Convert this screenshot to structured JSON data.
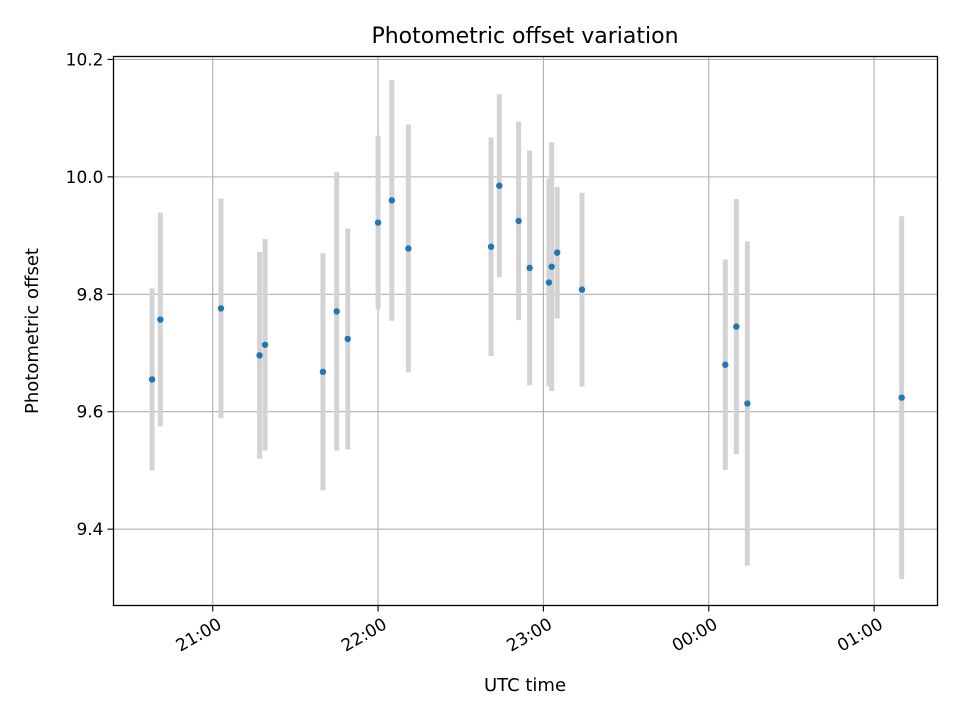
{
  "chart_data": {
    "type": "scatter",
    "title": "Photometric offset variation",
    "xlabel": "UTC time",
    "ylabel": "Photometric offset",
    "x_ticks": [
      "21:00",
      "22:00",
      "23:00",
      "00:00",
      "01:00"
    ],
    "y_ticks": [
      "9.4",
      "9.6",
      "9.8",
      "10.0",
      "10.2"
    ],
    "xlim": [
      "20:24",
      "01:23"
    ],
    "ylim": [
      9.27,
      10.205
    ],
    "grid": true,
    "marker_color": "#1f77b4",
    "errorbar_color": "#d3d3d3",
    "points": [
      {
        "t": "20:38",
        "y": 9.655,
        "err": 0.155
      },
      {
        "t": "20:41",
        "y": 9.757,
        "err": 0.182
      },
      {
        "t": "21:03",
        "y": 9.776,
        "err": 0.187
      },
      {
        "t": "21:17",
        "y": 9.696,
        "err": 0.176
      },
      {
        "t": "21:19",
        "y": 9.714,
        "err": 0.18
      },
      {
        "t": "21:40",
        "y": 9.668,
        "err": 0.202
      },
      {
        "t": "21:45",
        "y": 9.771,
        "err": 0.237
      },
      {
        "t": "21:49",
        "y": 9.724,
        "err": 0.188
      },
      {
        "t": "22:00",
        "y": 9.922,
        "err": 0.148
      },
      {
        "t": "22:05",
        "y": 9.96,
        "err": 0.205
      },
      {
        "t": "22:11",
        "y": 9.878,
        "err": 0.211
      },
      {
        "t": "22:41",
        "y": 9.881,
        "err": 0.186
      },
      {
        "t": "22:44",
        "y": 9.985,
        "err": 0.156
      },
      {
        "t": "22:51",
        "y": 9.925,
        "err": 0.169
      },
      {
        "t": "22:55",
        "y": 9.845,
        "err": 0.2
      },
      {
        "t": "23:02",
        "y": 9.82,
        "err": 0.177
      },
      {
        "t": "23:03",
        "y": 9.847,
        "err": 0.212
      },
      {
        "t": "23:05",
        "y": 9.871,
        "err": 0.112
      },
      {
        "t": "23:14",
        "y": 9.808,
        "err": 0.165
      },
      {
        "t": "00:06",
        "y": 9.68,
        "err": 0.179
      },
      {
        "t": "00:10",
        "y": 9.745,
        "err": 0.217
      },
      {
        "t": "00:14",
        "y": 9.614,
        "err": 0.276
      },
      {
        "t": "01:10",
        "y": 9.624,
        "err": 0.309
      }
    ]
  }
}
